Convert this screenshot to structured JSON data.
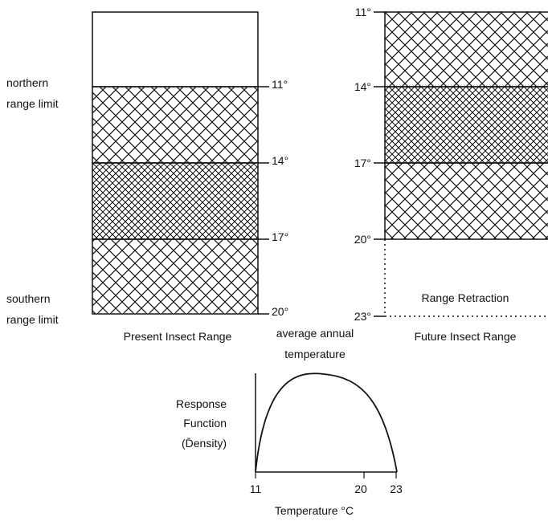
{
  "left_panel": {
    "north_label": [
      "northern",
      "range limit"
    ],
    "south_label": [
      "southern",
      "range limit"
    ],
    "caption": "Present Insect Range",
    "ticks": [
      "11°",
      "14°",
      "17°",
      "20°"
    ]
  },
  "middle": {
    "caption": [
      "average annual",
      "temperature"
    ]
  },
  "right_panel": {
    "ticks": [
      "11°",
      "14°",
      "17°",
      "20°",
      "23°"
    ],
    "retraction_label": "Range Retraction",
    "caption": "Future Insect Range"
  },
  "response_plot": {
    "ylabel": [
      "Response",
      "Function",
      "(D̄ensity)"
    ],
    "xlabel": "Temperature °C",
    "x_ticks": [
      "11",
      "20",
      "23"
    ]
  },
  "colors": {
    "ink": "#111111",
    "paper": "#ffffff"
  }
}
